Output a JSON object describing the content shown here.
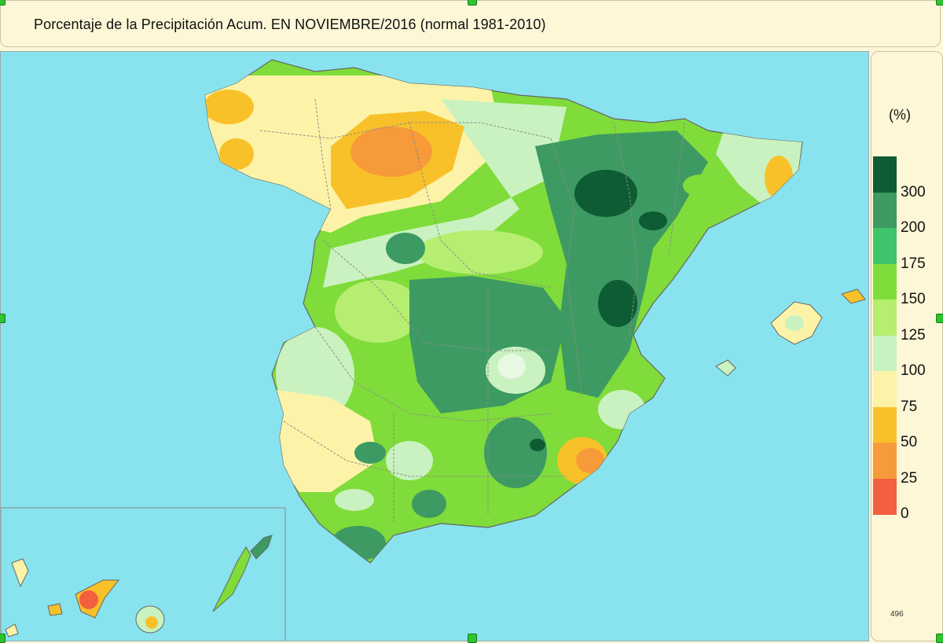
{
  "title": "Porcentaje de la Precipitación Acum. EN  NOVIEMBRE/2016  (normal 1981-2010)",
  "legend": {
    "unit": "(%)",
    "code": "496",
    "levels": [
      {
        "label": "300",
        "color": "#0d5c33"
      },
      {
        "label": "200",
        "color": "#3d9a62"
      },
      {
        "label": "175",
        "color": "#3ec46b"
      },
      {
        "label": "150",
        "color": "#7fdc3a"
      },
      {
        "label": "125",
        "color": "#b6ee70"
      },
      {
        "label": "100",
        "color": "#c9f2c0"
      },
      {
        "label": "75",
        "color": "#fdf3a8"
      },
      {
        "label": "50",
        "color": "#f8c12a"
      },
      {
        "label": "25",
        "color": "#f79a3a"
      },
      {
        "label": "0",
        "color": "#f26040"
      }
    ]
  },
  "colors": {
    "sea": "#88e3ee",
    "panel_bg": "#fdf7d7",
    "selection_handle": "#2ec42e"
  }
}
